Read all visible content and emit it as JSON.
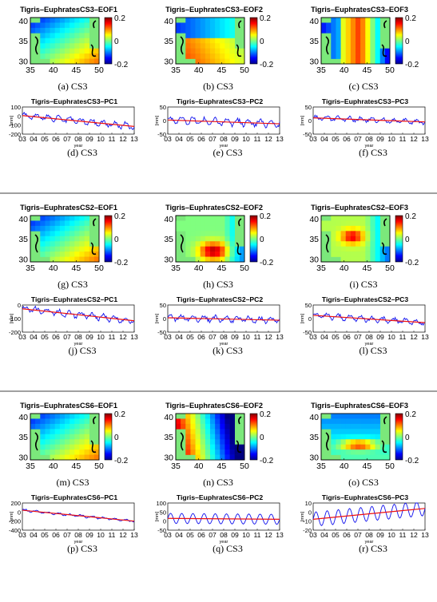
{
  "maps": [
    {
      "id": "a",
      "title": "Tigris–EuphratesCS3–EOF1",
      "caption": "(a) CS3",
      "pattern": "eof1"
    },
    {
      "id": "b",
      "title": "Tigris–EuphratesCS3–EOF2",
      "caption": "(b) CS3",
      "pattern": "cs3eof2"
    },
    {
      "id": "c",
      "title": "Tigris–EuphratesCS3–EOF3",
      "caption": "(c) CS3",
      "pattern": "cs3eof3"
    },
    {
      "id": "g",
      "title": "Tigris–EuphratesCS2–EOF1",
      "caption": "(g) CS3",
      "pattern": "eof1"
    },
    {
      "id": "h",
      "title": "Tigris–EuphratesCS2–EOF2",
      "caption": "(h) CS3",
      "pattern": "cs2eof2"
    },
    {
      "id": "i",
      "title": "Tigris–EuphratesCS2–EOF3",
      "caption": "(i) CS3",
      "pattern": "cs2eof3"
    },
    {
      "id": "m",
      "title": "Tigris–EuphratesCS6–EOF1",
      "caption": "(m) CS3",
      "pattern": "eof1"
    },
    {
      "id": "n",
      "title": "Tigris–EuphratesCS6–EOF2",
      "caption": "(n) CS3",
      "pattern": "cs6eof2"
    },
    {
      "id": "o",
      "title": "Tigris–EuphratesCS6–EOF3",
      "caption": "(o) CS3",
      "pattern": "cs6eof3"
    }
  ],
  "map_axes": {
    "x_ticks": [
      "35",
      "40",
      "45",
      "50"
    ],
    "y_ticks": [
      "40",
      "35",
      "30"
    ],
    "colorbar_ticks": [
      "0.2",
      "0",
      "-0.2"
    ],
    "colorbar_range": [
      -0.2,
      0.2
    ]
  },
  "series": [
    {
      "id": "d",
      "title": "Tigris–EuphratesCS3–PC1",
      "caption": "(d) CS3",
      "y_ticks": [
        "100",
        "0",
        "-100",
        "-200"
      ],
      "y_range": [
        -200,
        100
      ],
      "seasonal": false,
      "amp": 50,
      "trend": [
        5,
        -115
      ]
    },
    {
      "id": "e",
      "title": "Tigris–EuphratesCS3–PC2",
      "caption": "(e) CS3",
      "y_ticks": [
        "50",
        "0",
        "-50"
      ],
      "y_range": [
        -50,
        50
      ],
      "seasonal": false,
      "amp": 18,
      "trend": [
        2,
        -12
      ]
    },
    {
      "id": "f",
      "title": "Tigris–EuphratesCS3–PC3",
      "caption": "(f) CS3",
      "y_ticks": [
        "50",
        "0",
        "-50"
      ],
      "y_range": [
        -50,
        50
      ],
      "seasonal": false,
      "amp": 12,
      "trend": [
        10,
        -5
      ]
    },
    {
      "id": "j",
      "title": "Tigris–EuphratesCS2–PC1",
      "caption": "(j) CS3",
      "y_ticks": [
        "0",
        "-100",
        "-200"
      ],
      "y_range": [
        -200,
        50
      ],
      "seasonal": false,
      "amp": 40,
      "trend": [
        15,
        -95
      ]
    },
    {
      "id": "k",
      "title": "Tigris–EuphratesCS2–PC2",
      "caption": "(k) CS3",
      "y_ticks": [
        "50",
        "0",
        "-50"
      ],
      "y_range": [
        -50,
        50
      ],
      "seasonal": false,
      "amp": 15,
      "trend": [
        3,
        -6
      ]
    },
    {
      "id": "l",
      "title": "Tigris–EuphratesCS2–PC3",
      "caption": "(l) CS3",
      "y_ticks": [
        "50",
        "0",
        "-50"
      ],
      "y_range": [
        -50,
        50
      ],
      "seasonal": false,
      "amp": 15,
      "trend": [
        12,
        -15
      ]
    },
    {
      "id": "p",
      "title": "Tigris–EuphratesCS6–PC1",
      "caption": "(p) CS3",
      "y_ticks": [
        "200",
        "0",
        "-200",
        "-400"
      ],
      "y_range": [
        -400,
        200
      ],
      "seasonal": false,
      "amp": 35,
      "trend": [
        40,
        -200
      ]
    },
    {
      "id": "q",
      "title": "Tigris–EuphratesCS6–PC2",
      "caption": "(q) CS3",
      "y_ticks": [
        "100",
        "50",
        "0",
        "-50"
      ],
      "y_range": [
        -50,
        100
      ],
      "seasonal": true,
      "amp": 28,
      "trend": [
        15,
        10
      ]
    },
    {
      "id": "r",
      "title": "Tigris–EuphratesCS6–PC3",
      "caption": "(r) CS3",
      "y_ticks": [
        "10",
        "0",
        "-10",
        "-20"
      ],
      "y_range": [
        -20,
        10
      ],
      "seasonal": true,
      "amp": 8,
      "trend": [
        -8,
        4
      ]
    }
  ],
  "series_axes": {
    "x_ticks": [
      "03",
      "04",
      "05",
      "06",
      "07",
      "08",
      "09",
      "10",
      "11",
      "12",
      "13"
    ],
    "x_range": [
      3,
      13
    ],
    "xlabel": "year",
    "ylabel": "[mm]"
  },
  "colors": {
    "series_line": "#1010ee",
    "trend_line": "#ee1010",
    "land": "#7be87b"
  }
}
